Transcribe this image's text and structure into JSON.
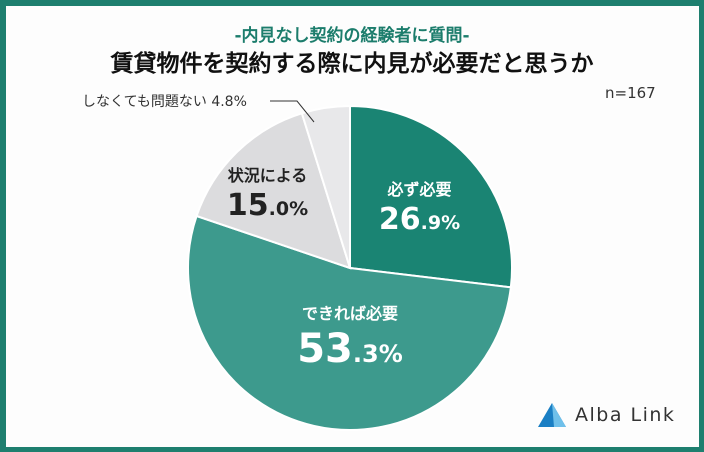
{
  "header": {
    "subtitle": "-内見なし契約の経験者に質問-",
    "title": "賃貸物件を契約する際に内見が必要だと思うか",
    "sample": "n=167"
  },
  "labels": {
    "a_name": "必ず必要",
    "a_int": "26",
    "a_dec": ".9%",
    "b_name": "できれば必要",
    "b_int": "53",
    "b_dec": ".3%",
    "c_name": "状況による",
    "c_int": "15",
    "c_dec": ".0%",
    "d_callout": "しなくても問題ない 4.8%"
  },
  "logo": {
    "text": "Alba Link"
  },
  "colors": {
    "must": "#1a8473",
    "prefer": "#3d9a8d",
    "depends": "#dcdcde",
    "none": "#e8e8ea",
    "accent": "#1c7d6c"
  },
  "chart_data": {
    "type": "pie",
    "title": "賃貸物件を契約する際に内見が必要だと思うか",
    "subtitle": "-内見なし契約の経験者に質問-",
    "n": 167,
    "categories": [
      "必ず必要",
      "できれば必要",
      "状況による",
      "しなくても問題ない"
    ],
    "values": [
      26.9,
      53.3,
      15.0,
      4.8
    ],
    "unit": "%",
    "start_angle": "12 o'clock, clockwise"
  }
}
